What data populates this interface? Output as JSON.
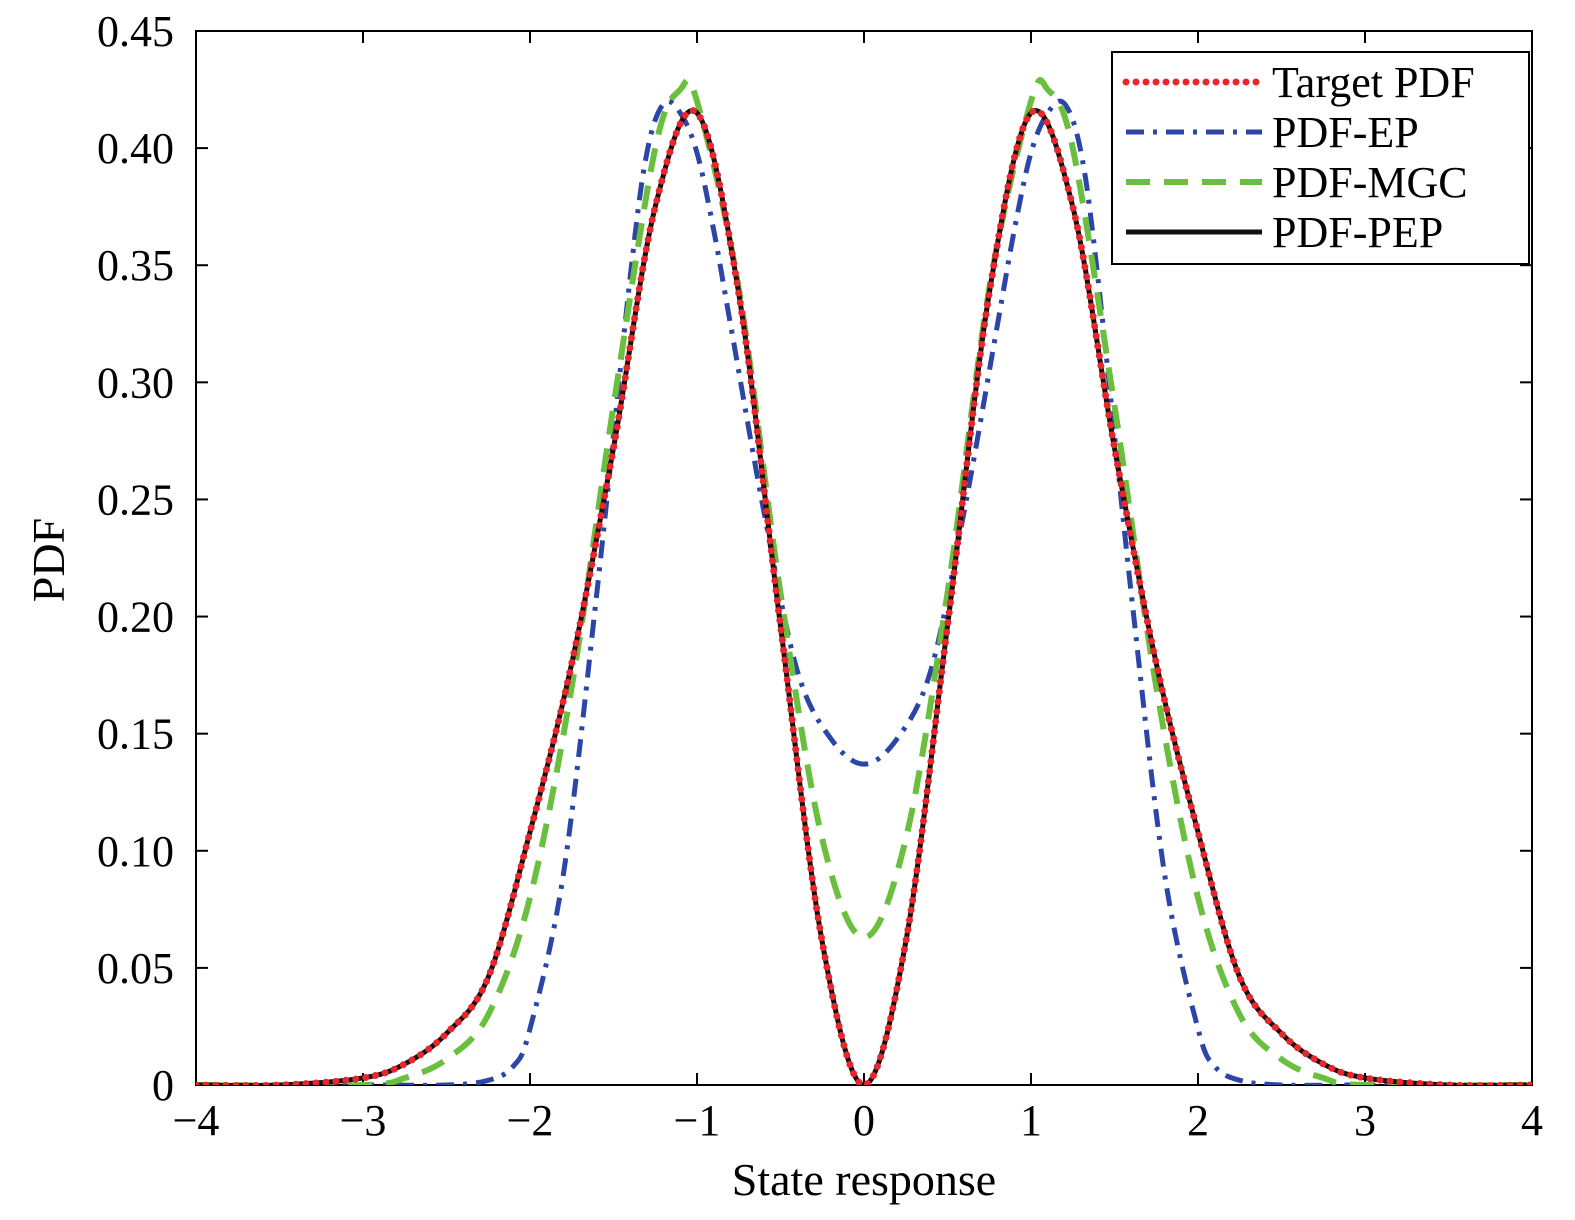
{
  "chart_data": {
    "type": "line",
    "title": "",
    "xlabel": "State response",
    "ylabel": "PDF",
    "xlim": [
      -4,
      4
    ],
    "ylim": [
      0,
      0.45
    ],
    "x_ticks": [
      -4,
      -3,
      -2,
      -1,
      0,
      1,
      2,
      3,
      4
    ],
    "x_tick_labels": [
      "−4",
      "−3",
      "−2",
      "−1",
      "0",
      "1",
      "2",
      "3",
      "4"
    ],
    "y_ticks": [
      0,
      0.05,
      0.1,
      0.15,
      0.2,
      0.25,
      0.3,
      0.35,
      0.4,
      0.45
    ],
    "y_tick_labels": [
      "0",
      "0.05",
      "0.10",
      "0.15",
      "0.20",
      "0.25",
      "0.30",
      "0.35",
      "0.40",
      "0.45"
    ],
    "grid": false,
    "legend_position": "top-right",
    "series": [
      {
        "name": "Target PDF",
        "color": "#e8262b",
        "style": "dotted",
        "x": [
          -4.0,
          -3.5,
          -3.0,
          -2.75,
          -2.5,
          -2.25,
          -2.0,
          -1.75,
          -1.5,
          -1.25,
          -1.0,
          -0.75,
          -0.5,
          -0.25,
          0.0,
          0.25,
          0.5,
          0.75,
          1.0,
          1.25,
          1.5,
          1.75,
          2.0,
          2.25,
          2.5,
          2.75,
          3.0,
          3.5,
          4.0
        ],
        "y": [
          0.0,
          0.0,
          0.003,
          0.009,
          0.022,
          0.046,
          0.108,
          0.18,
          0.272,
          0.375,
          0.415,
          0.338,
          0.196,
          0.061,
          0.0,
          0.061,
          0.196,
          0.338,
          0.415,
          0.375,
          0.272,
          0.18,
          0.108,
          0.046,
          0.022,
          0.009,
          0.003,
          0.0,
          0.0
        ]
      },
      {
        "name": "PDF-EP",
        "color": "#2b46a6",
        "style": "dashdot",
        "x": [
          -4.0,
          -3.0,
          -2.5,
          -2.25,
          -2.1,
          -2.0,
          -1.8,
          -1.6,
          -1.4,
          -1.3,
          -1.2,
          -1.1,
          -1.0,
          -0.9,
          -0.8,
          -0.6,
          -0.4,
          -0.2,
          0.0,
          0.2,
          0.4,
          0.6,
          0.8,
          0.9,
          1.0,
          1.1,
          1.2,
          1.3,
          1.4,
          1.6,
          1.8,
          2.0,
          2.1,
          2.25,
          2.5,
          3.0,
          4.0
        ],
        "y": [
          0.0,
          0.0,
          0.0,
          0.002,
          0.008,
          0.024,
          0.09,
          0.21,
          0.345,
          0.398,
          0.419,
          0.415,
          0.398,
          0.365,
          0.325,
          0.245,
          0.177,
          0.148,
          0.137,
          0.148,
          0.177,
          0.245,
          0.325,
          0.365,
          0.398,
          0.415,
          0.419,
          0.398,
          0.345,
          0.21,
          0.09,
          0.024,
          0.008,
          0.002,
          0.0,
          0.0,
          0.0
        ]
      },
      {
        "name": "PDF-MGC",
        "color": "#6abf3f",
        "style": "dashed",
        "x": [
          -4.0,
          -3.0,
          -2.75,
          -2.5,
          -2.25,
          -2.0,
          -1.75,
          -1.5,
          -1.25,
          -1.1,
          -1.0,
          -0.75,
          -0.5,
          -0.25,
          0.0,
          0.25,
          0.5,
          0.75,
          1.0,
          1.1,
          1.25,
          1.5,
          1.75,
          2.0,
          2.25,
          2.5,
          2.75,
          3.0,
          4.0
        ],
        "y": [
          0.0,
          0.0,
          0.003,
          0.011,
          0.03,
          0.08,
          0.17,
          0.29,
          0.4,
          0.425,
          0.42,
          0.34,
          0.21,
          0.105,
          0.063,
          0.105,
          0.21,
          0.34,
          0.42,
          0.425,
          0.4,
          0.29,
          0.17,
          0.08,
          0.03,
          0.011,
          0.003,
          0.0,
          0.0
        ]
      },
      {
        "name": "PDF-PEP",
        "color": "#111111",
        "style": "solid",
        "x": [
          -4.0,
          -3.5,
          -3.0,
          -2.75,
          -2.5,
          -2.25,
          -2.0,
          -1.75,
          -1.5,
          -1.25,
          -1.0,
          -0.75,
          -0.5,
          -0.25,
          0.0,
          0.25,
          0.5,
          0.75,
          1.0,
          1.25,
          1.5,
          1.75,
          2.0,
          2.25,
          2.5,
          2.75,
          3.0,
          3.5,
          4.0
        ],
        "y": [
          0.0,
          0.0,
          0.003,
          0.009,
          0.022,
          0.046,
          0.108,
          0.18,
          0.272,
          0.375,
          0.415,
          0.338,
          0.196,
          0.061,
          0.0,
          0.061,
          0.196,
          0.338,
          0.415,
          0.375,
          0.272,
          0.18,
          0.108,
          0.046,
          0.022,
          0.009,
          0.003,
          0.0,
          0.0
        ]
      }
    ]
  }
}
